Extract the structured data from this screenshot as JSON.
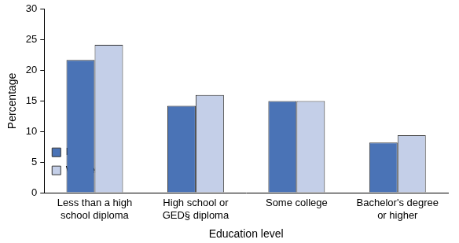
{
  "chart_data": {
    "type": "bar",
    "categories": [
      "Less than a high\nschool diploma",
      "High school or\nGED§ diploma",
      "Some college",
      "Bachelor's degree\nor higher"
    ],
    "series": [
      {
        "name": "Men",
        "color": "#4a73b6",
        "values": [
          21.7,
          14.2,
          15.0,
          8.2
        ]
      },
      {
        "name": "Women",
        "color": "#c4cfe8",
        "values": [
          24.2,
          16.0,
          15.0,
          9.4
        ]
      }
    ],
    "x_label": "Education level",
    "y_label": "Percentage",
    "ylim": [
      0,
      30
    ],
    "yticks": [
      0,
      5,
      10,
      15,
      20,
      25,
      30
    ],
    "grid": false,
    "legend": "upper right"
  }
}
